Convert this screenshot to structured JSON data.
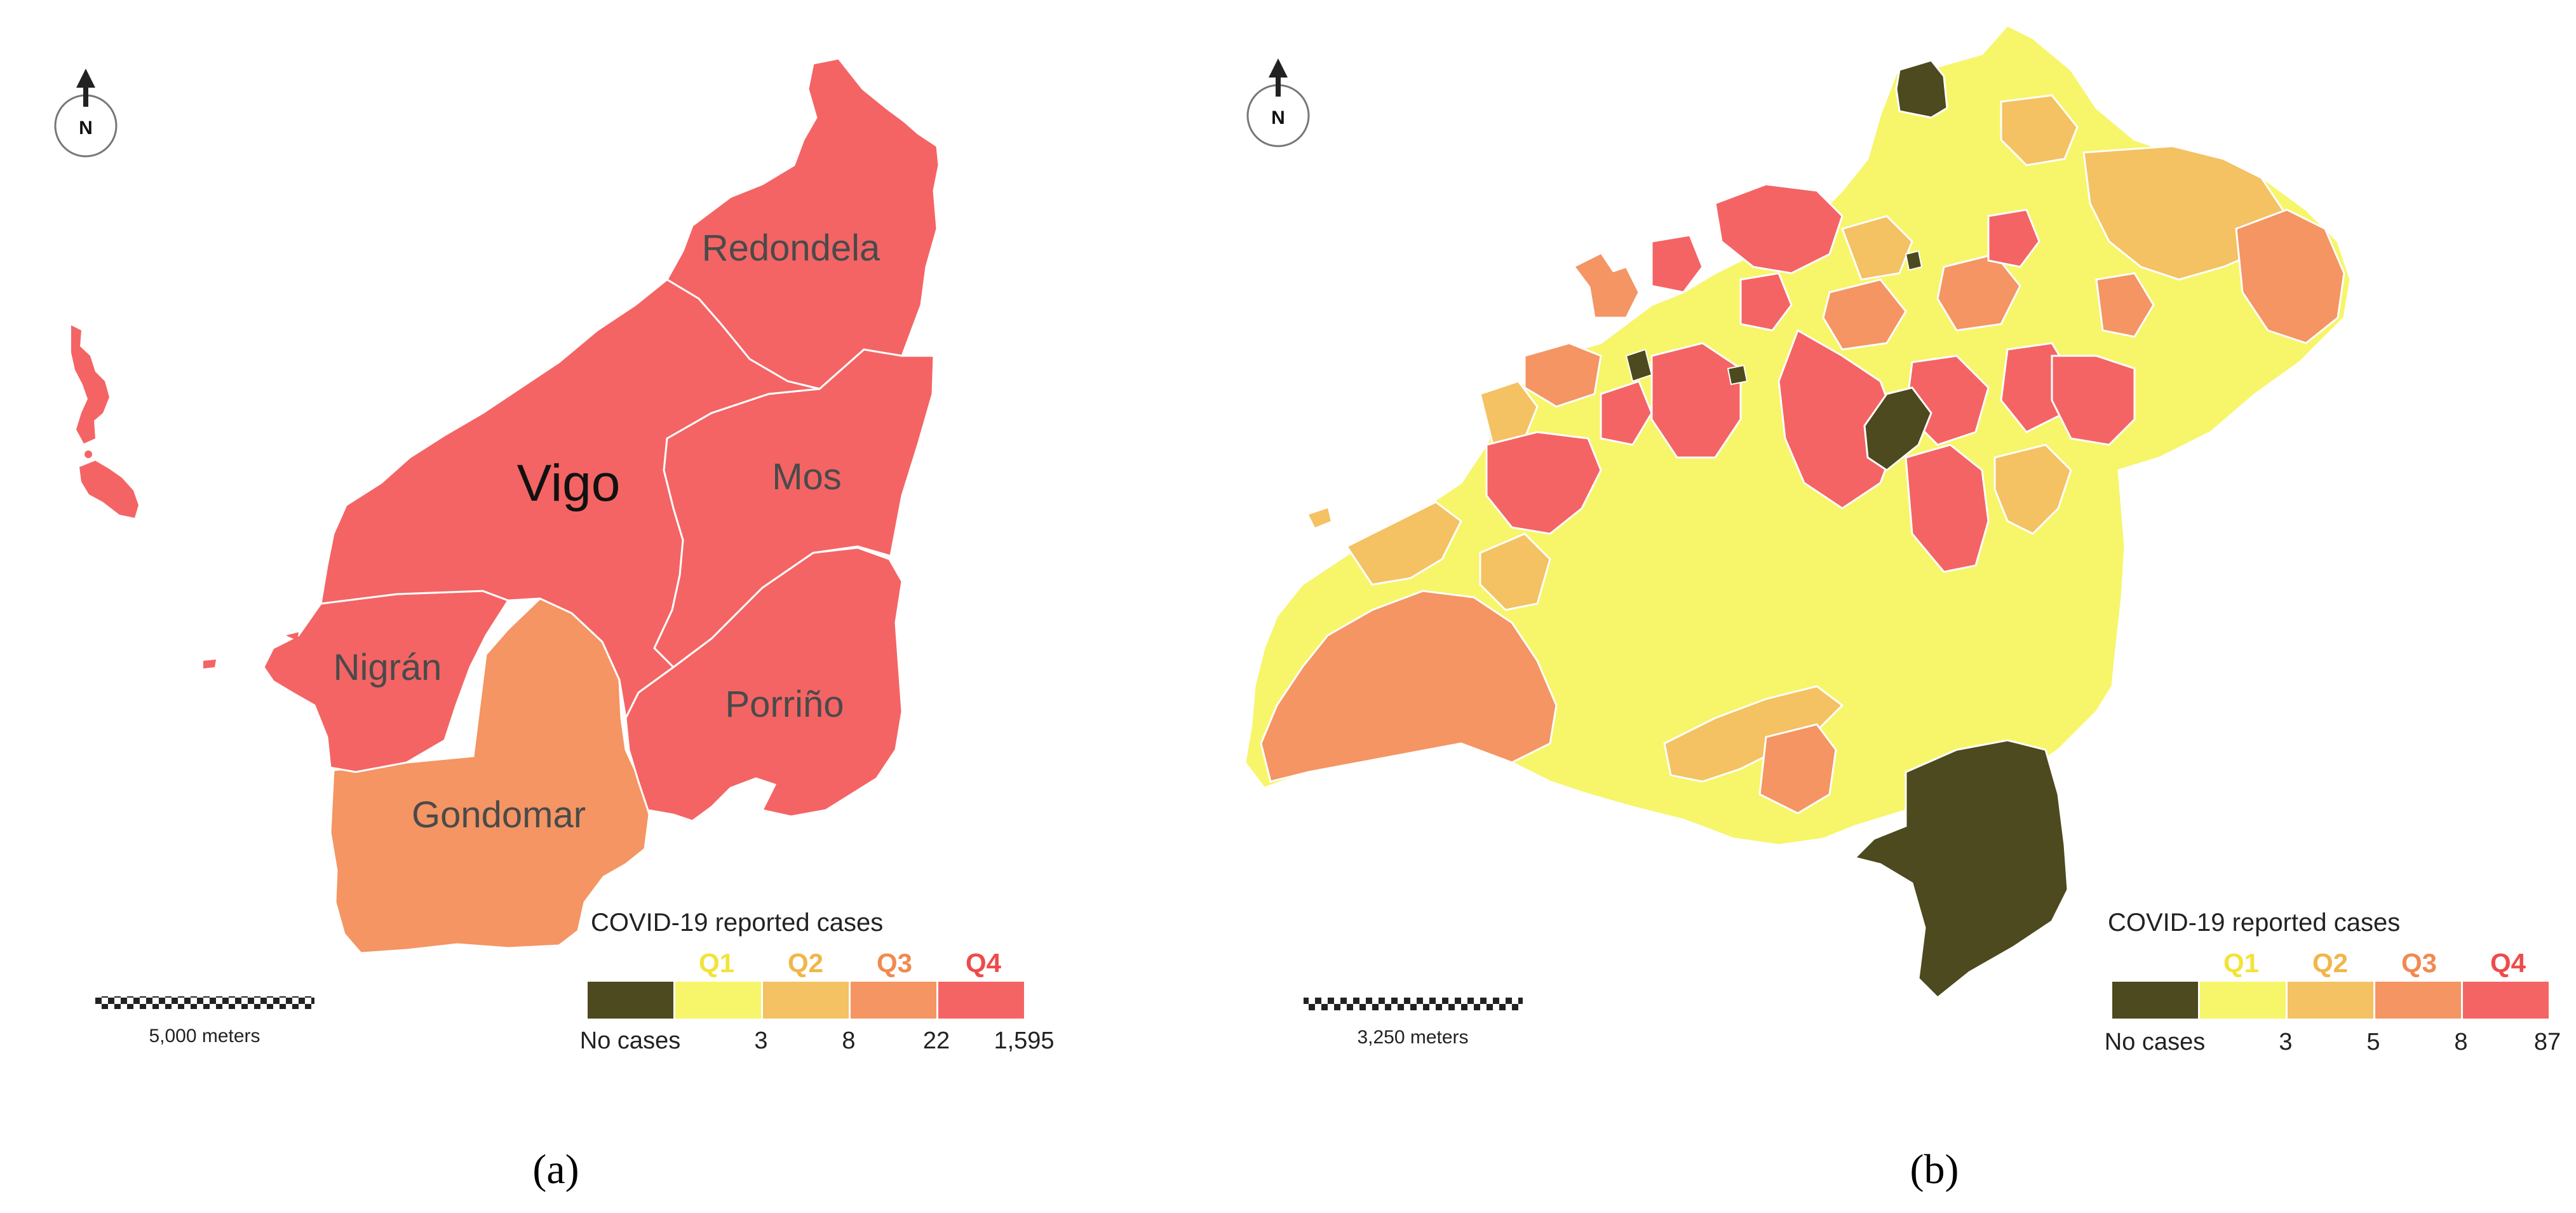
{
  "panels": [
    {
      "id": "a",
      "panel_label": "(a)",
      "north_label": "N",
      "scale_label": "5,000 meters",
      "municipalities": [
        {
          "name": "Redondela",
          "class": "Q4"
        },
        {
          "name": "Vigo",
          "class": "Q4"
        },
        {
          "name": "Mos",
          "class": "Q4"
        },
        {
          "name": "Nigrán",
          "class": "Q4"
        },
        {
          "name": "Porriño",
          "class": "Q4"
        },
        {
          "name": "Gondomar",
          "class": "Q3"
        }
      ],
      "legend": {
        "title": "COVID-19 reported cases",
        "classes": [
          "",
          "Q1",
          "Q2",
          "Q3",
          "Q4"
        ],
        "breaks": [
          "No cases",
          "3",
          "8",
          "22",
          "1,595"
        ]
      }
    },
    {
      "id": "b",
      "panel_label": "(b)",
      "north_label": "N",
      "scale_label": "3,250 meters",
      "legend": {
        "title": "COVID-19 reported cases",
        "classes": [
          "",
          "Q1",
          "Q2",
          "Q3",
          "Q4"
        ],
        "breaks": [
          "No cases",
          "3",
          "5",
          "8",
          "87"
        ]
      }
    }
  ],
  "colors": {
    "no_cases": "#4c4a1e",
    "Q1": "#f7f56a",
    "Q2": "#f4c163",
    "Q3": "#f49563",
    "Q4": "#f46464",
    "Q1_text": "#f2e33a",
    "Q2_text": "#f0b64a",
    "Q3_text": "#f08a52",
    "Q4_text": "#ee4b4b"
  }
}
